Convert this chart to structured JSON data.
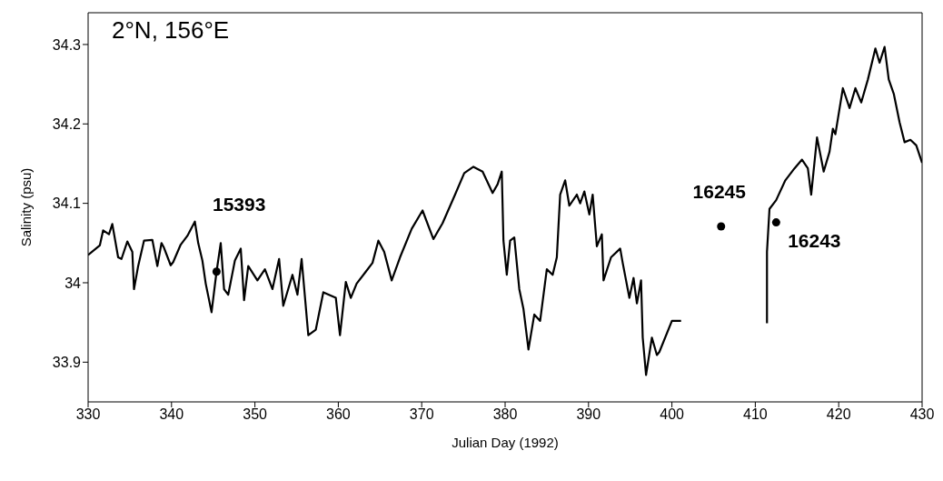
{
  "chart_data": {
    "type": "line",
    "title": "2°N, 156°E",
    "xlabel": "Julian Day (1992)",
    "ylabel": "Salinity (psu)",
    "xlim": [
      330,
      430
    ],
    "xticks": [
      330,
      340,
      350,
      360,
      370,
      380,
      390,
      400,
      410,
      420,
      430
    ],
    "ylim": [
      33.85,
      34.34
    ],
    "yticks": [
      33.9,
      34,
      34.1,
      34.2,
      34.3
    ],
    "grid": false,
    "series": [
      {
        "color": "#000000",
        "marker": "none",
        "x": [
          330,
          331.4,
          331.8,
          332.5,
          332.9,
          333.6,
          334.0,
          334.7,
          335.3,
          335.5,
          336.0,
          336.7,
          337.7,
          338.3,
          338.8,
          339.1,
          339.9,
          340.2,
          341.1,
          341.9,
          342.8,
          343.2,
          343.7,
          344.1,
          344.8,
          345.4,
          345.9,
          346.3,
          346.8,
          347.6,
          348.3,
          348.7,
          349.2,
          350.3,
          351.2,
          352.1,
          352.9,
          353.4,
          354.5,
          355.1,
          355.6,
          356.4,
          357.3,
          358.2,
          359.7,
          360.2,
          360.9,
          361.5,
          362.2,
          363.3,
          364.1,
          364.8,
          365.5,
          366.4,
          367.4,
          368.8,
          370.1,
          371.4,
          372.5,
          374.0,
          375.1,
          376.2,
          377.3,
          378.5,
          379.1,
          379.6,
          379.8,
          380.2,
          380.6,
          381.1,
          381.7,
          382.2,
          382.8,
          383.5,
          384.2,
          385.0,
          385.7,
          386.2,
          386.6,
          387.2,
          387.7,
          388.6,
          389.0,
          389.5,
          390.1,
          390.5,
          391.0,
          391.6,
          391.8,
          392.7,
          393.8,
          394.1,
          394.9,
          395.4,
          395.8,
          396.3,
          396.5,
          396.9,
          397.6,
          398.2,
          398.5,
          400.0,
          401.1,
          405,
          411.4,
          411.4,
          411.7,
          412.5,
          413.6,
          414.7,
          415.6,
          416.3,
          416.7,
          417.4,
          418.2,
          418.9,
          419.3,
          419.6,
          420.5,
          421.3,
          422.0,
          422.7,
          423.5,
          424.4,
          424.9,
          425.5,
          426.0,
          426.6,
          427.3,
          427.9,
          428.6,
          429.3,
          430
        ],
        "values": [
          34.035,
          34.047,
          34.066,
          34.061,
          34.074,
          34.032,
          34.03,
          34.052,
          34.039,
          33.992,
          34.021,
          34.053,
          34.054,
          34.021,
          34.05,
          34.044,
          34.022,
          34.026,
          34.048,
          34.059,
          34.077,
          34.05,
          34.028,
          33.999,
          33.963,
          34.014,
          34.05,
          33.992,
          33.985,
          34.028,
          34.043,
          33.978,
          34.021,
          34.003,
          34.017,
          33.992,
          34.03,
          33.971,
          34.01,
          33.985,
          34.03,
          33.934,
          33.941,
          33.988,
          33.981,
          33.934,
          34.001,
          33.981,
          33.999,
          34.014,
          34.025,
          34.053,
          34.039,
          34.003,
          34.032,
          34.068,
          34.091,
          34.055,
          34.075,
          34.111,
          34.138,
          34.146,
          34.14,
          34.113,
          34.124,
          34.14,
          34.053,
          34.01,
          34.053,
          34.057,
          33.992,
          33.967,
          33.916,
          33.96,
          33.952,
          34.017,
          34.01,
          34.032,
          34.111,
          34.129,
          34.097,
          34.111,
          34.1,
          34.115,
          34.086,
          34.111,
          34.046,
          34.061,
          34.003,
          34.032,
          34.043,
          34.025,
          33.981,
          34.006,
          33.974,
          34.003,
          33.931,
          33.884,
          33.931,
          33.909,
          33.913,
          33.952,
          33.952,
          null,
          33.949,
          34.039,
          34.093,
          34.104,
          34.129,
          34.144,
          34.155,
          34.144,
          34.111,
          34.183,
          34.14,
          34.165,
          34.194,
          34.187,
          34.245,
          34.22,
          34.245,
          34.227,
          34.256,
          34.295,
          34.277,
          34.297,
          34.256,
          34.238,
          34.202,
          34.177,
          34.18,
          34.173,
          34.151
        ]
      },
      {
        "type": "scatter",
        "color": "#000000",
        "marker": "circle",
        "x": [
          345.4,
          405.9,
          412.5
        ],
        "values": [
          34.014,
          34.071,
          34.076
        ]
      }
    ],
    "annotations": [
      "15393",
      {
        "text": "16245",
        "x": 405.9,
        "y": 34.071
      },
      {
        "text": "16243",
        "x": 412.5,
        "y": 34.076
      }
    ]
  }
}
